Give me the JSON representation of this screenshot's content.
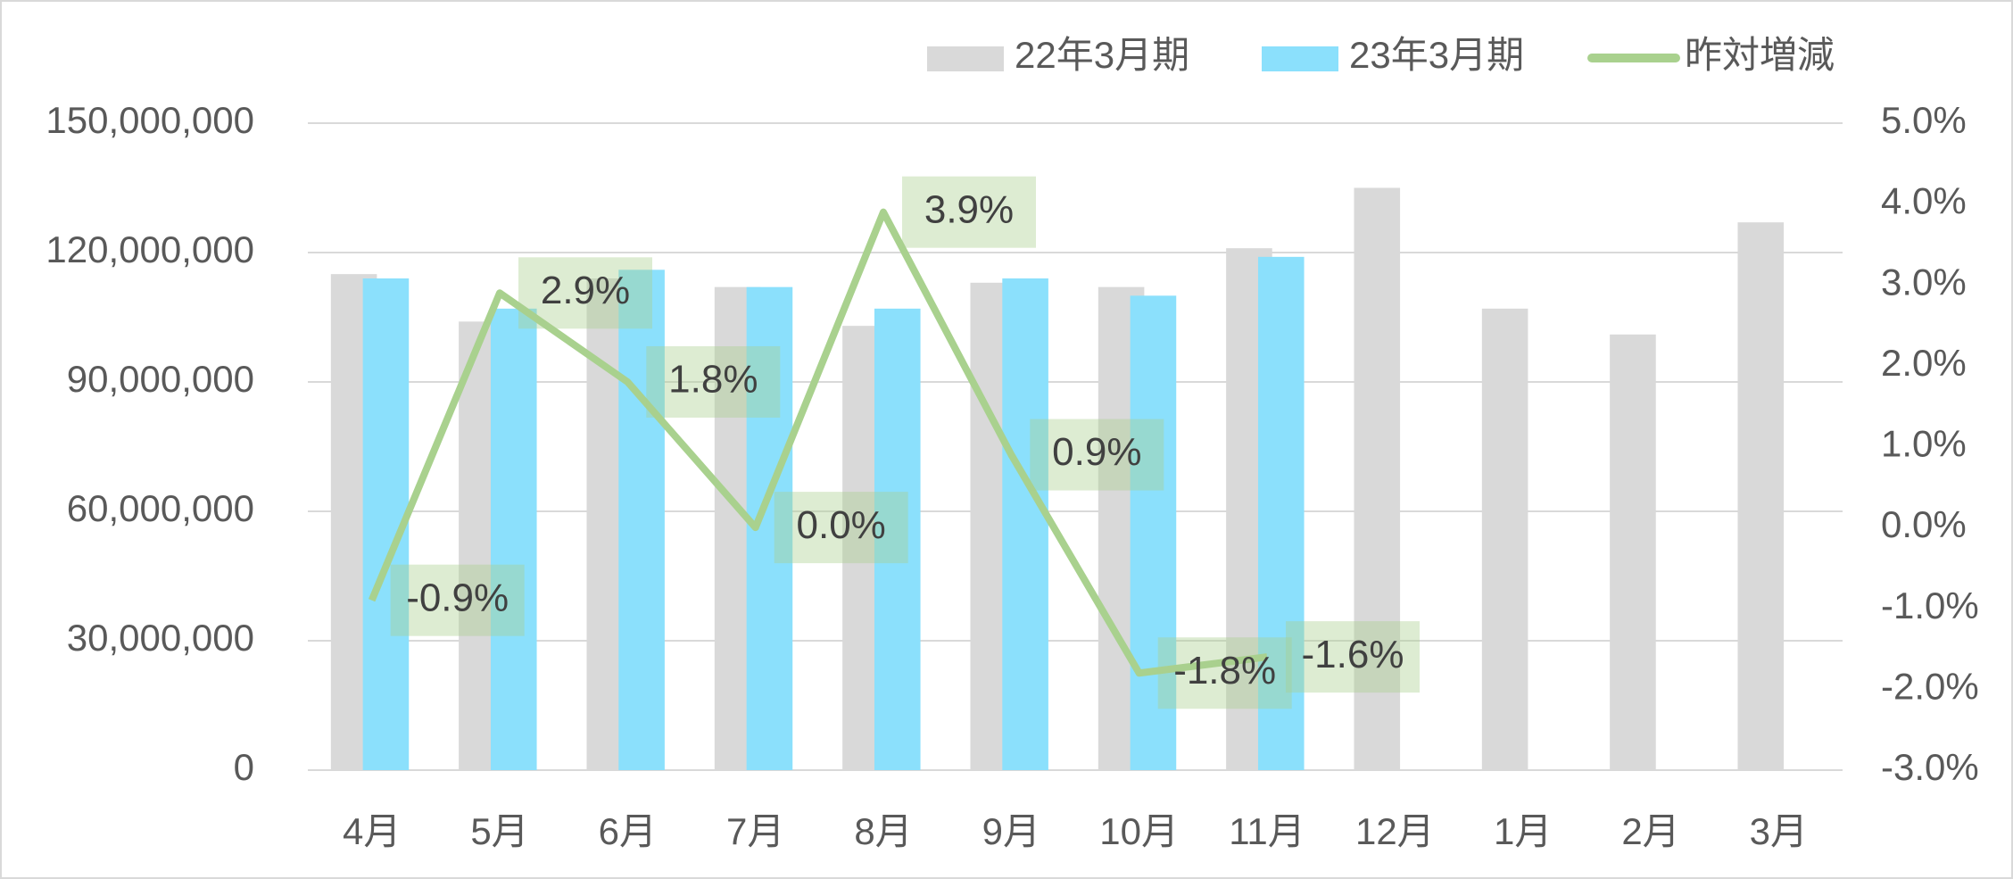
{
  "chart_data": {
    "type": "bar-line",
    "categories": [
      "4月",
      "5月",
      "6月",
      "7月",
      "8月",
      "9月",
      "10月",
      "11月",
      "12月",
      "1月",
      "2月",
      "3月"
    ],
    "series": [
      {
        "name": "22年3月期",
        "color": "#d9d9d9",
        "values": [
          115000000,
          104000000,
          114000000,
          112000000,
          103000000,
          113000000,
          112000000,
          121000000,
          135000000,
          107000000,
          101000000,
          127000000
        ]
      },
      {
        "name": "23年3月期",
        "color": "#8be0fc",
        "values": [
          114000000,
          107000000,
          116000000,
          112000000,
          107000000,
          114000000,
          110000000,
          119000000,
          null,
          null,
          null,
          null
        ]
      },
      {
        "name": "昨対増減",
        "color": "#a9d18e",
        "axis": "y2",
        "type": "line",
        "values": [
          -0.9,
          2.9,
          1.8,
          0.0,
          3.9,
          0.9,
          -1.8,
          -1.6,
          null,
          null,
          null,
          null
        ],
        "value_labels": [
          "-0.9%",
          "2.9%",
          "1.8%",
          "0.0%",
          "3.9%",
          "0.9%",
          "-1.8%",
          "-1.6%",
          null,
          null,
          null,
          null
        ]
      }
    ],
    "ylim": [
      0,
      150000000
    ],
    "yticks": [
      0,
      {
        "value": 30000000,
        "label": "30,000,000"
      },
      {
        "value": 60000000,
        "label": "60,000,000"
      },
      {
        "value": 90000000,
        "label": "90,000,000"
      },
      {
        "value": 120000000,
        "label": "120,000,000"
      },
      {
        "value": 150000000,
        "label": "150,000,000"
      }
    ],
    "y2lim": [
      -3,
      5
    ],
    "y2ticks": [
      {
        "value": -3,
        "label": "-3.0%"
      },
      {
        "value": -2,
        "label": "-2.0%"
      },
      {
        "value": -1,
        "label": "-1.0%"
      },
      {
        "value": 0,
        "label": "0.0%"
      },
      {
        "value": 1,
        "label": "1.0%"
      },
      {
        "value": 2,
        "label": "2.0%"
      },
      {
        "value": 3,
        "label": "3.0%"
      },
      {
        "value": 4,
        "label": "4.0%"
      },
      {
        "value": 5,
        "label": "5.0%"
      }
    ],
    "grid": true,
    "legend": "top"
  }
}
